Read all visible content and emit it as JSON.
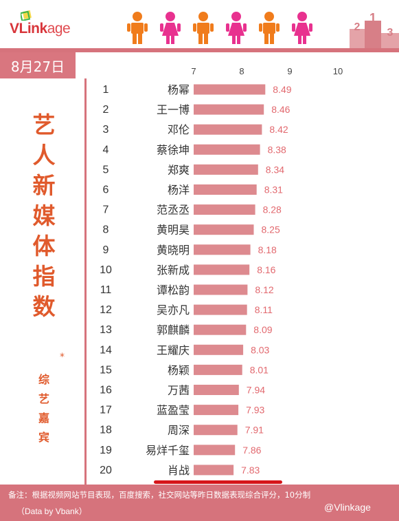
{
  "header": {
    "logo_brand": "VLink",
    "logo_rest": "age",
    "podium_numbers": [
      "2",
      "1",
      "3"
    ]
  },
  "date": "8月27日",
  "title_chars": [
    "艺",
    "人",
    "新",
    "媒",
    "体",
    "指",
    "数"
  ],
  "title_star": "*",
  "subtitle_chars": [
    "综",
    "艺",
    "嘉",
    "宾"
  ],
  "colors": {
    "bar": "#dd8a8f",
    "value_text": "#e2686e",
    "accent": "#d6737c",
    "title": "#e05a2c",
    "man": "#f07c1c",
    "woman": "#e8318f"
  },
  "chart_data": {
    "type": "bar",
    "orientation": "horizontal",
    "xlim": [
      7,
      10
    ],
    "xticks": [
      "7",
      "8",
      "9",
      "10"
    ],
    "ranks": [
      "1",
      "2",
      "3",
      "4",
      "5",
      "6",
      "7",
      "8",
      "9",
      "10",
      "11",
      "12",
      "13",
      "14",
      "15",
      "16",
      "17",
      "18",
      "19",
      "20"
    ],
    "categories": [
      "杨幂",
      "王一博",
      "邓伦",
      "蔡徐坤",
      "郑爽",
      "杨洋",
      "范丞丞",
      "黄明昊",
      "黄晓明",
      "张新成",
      "谭松韵",
      "吴亦凡",
      "郭麒麟",
      "王耀庆",
      "杨颖",
      "万茜",
      "蓝盈莹",
      "周深",
      "易烊千玺",
      "肖战"
    ],
    "values": [
      8.49,
      8.46,
      8.42,
      8.38,
      8.34,
      8.31,
      8.28,
      8.25,
      8.18,
      8.16,
      8.12,
      8.11,
      8.09,
      8.03,
      8.01,
      7.94,
      7.93,
      7.91,
      7.86,
      7.83
    ],
    "value_labels": [
      "8.49",
      "8.46",
      "8.42",
      "8.38",
      "8.34",
      "8.31",
      "8.28",
      "8.25",
      "8.18",
      "8.16",
      "8.12",
      "8.11",
      "8.09",
      "8.03",
      "8.01",
      "7.94",
      "7.93",
      "7.91",
      "7.86",
      "7.83"
    ]
  },
  "footer": {
    "note": "备注：根据视频网站节目表现，百度搜索，社交网站等昨日数据表现综合评分，10分制",
    "source": "（Data by Vbank）",
    "watermark": "@Vlinkage"
  }
}
